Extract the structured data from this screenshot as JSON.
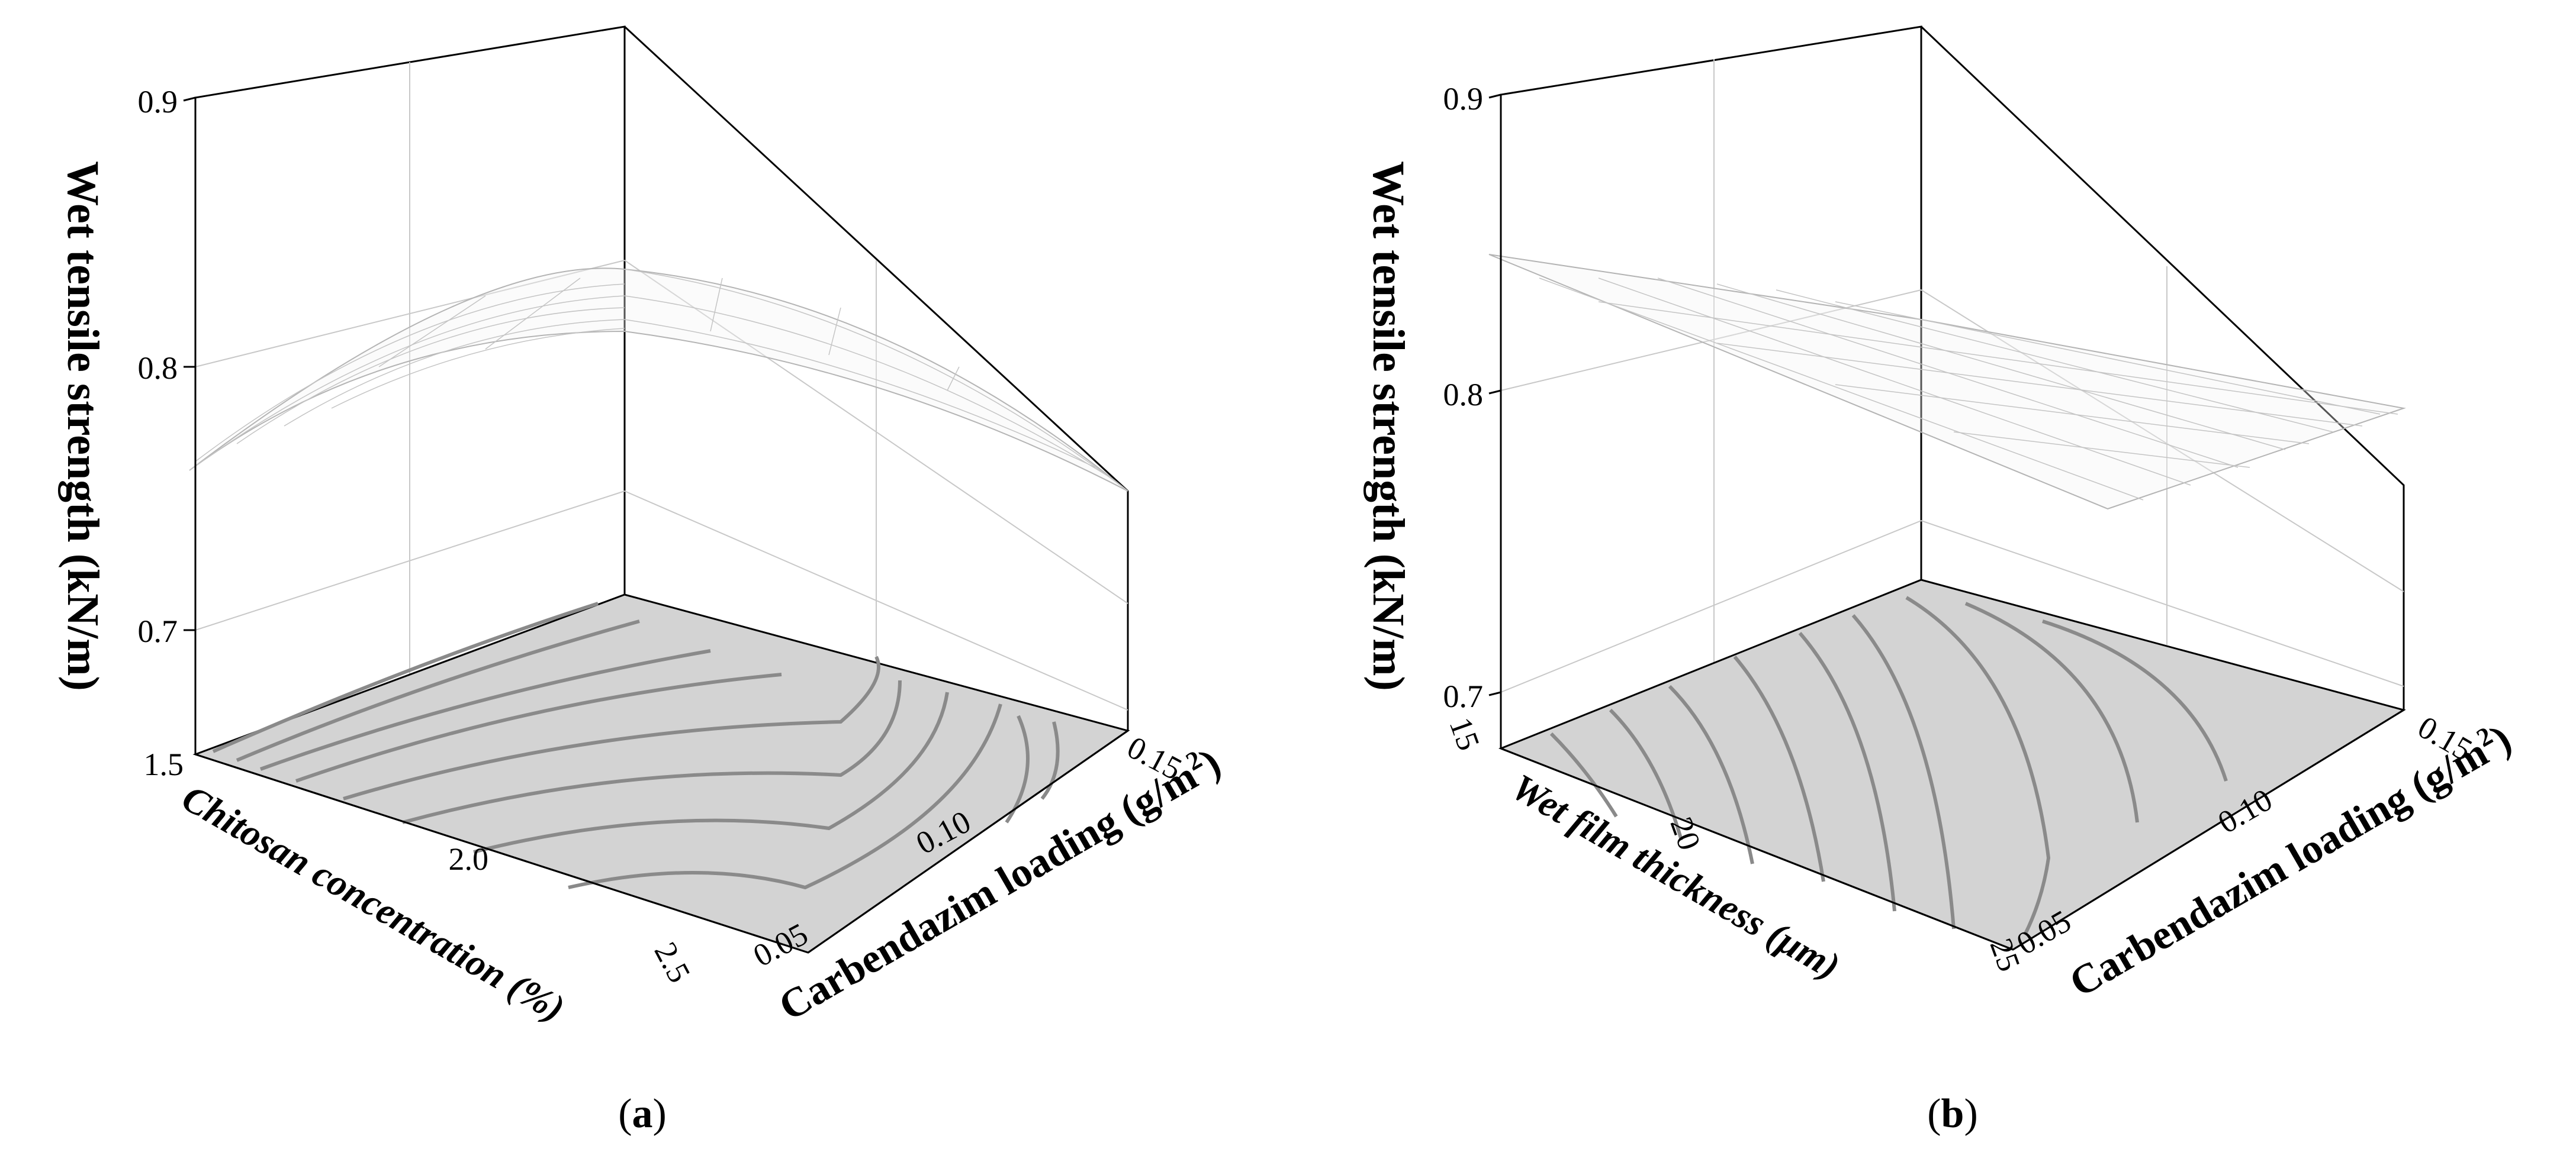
{
  "chart_data": [
    {
      "type": "surface3d",
      "panel_label": "a",
      "zlabel": "Wet tensile strength (kN/m)",
      "xlabel": "Chitosan concentration (%)",
      "ylabel": "Carbendazim loading (g/m²)",
      "ylabel_main": "Carbendazim loading (g/m",
      "ylabel_sup": "2",
      "ylabel_end": ")",
      "z_ticks": [
        "0.7",
        "0.8",
        "0.9"
      ],
      "x_ticks": [
        "1.5",
        "2.0",
        "2.5"
      ],
      "y_ticks": [
        "0.05",
        "0.10",
        "0.15"
      ],
      "x_range": [
        1.5,
        2.5
      ],
      "y_range": [
        0.05,
        0.15
      ],
      "z_range": [
        0.66,
        0.9
      ],
      "surface_corners": {
        "x1.5_y0.05": 0.757,
        "x2.5_y0.05": 0.735,
        "x1.5_y0.15": 0.8,
        "x2.5_y0.15": 0.77,
        "peak_z": 0.815
      },
      "contours": true,
      "grid": true
    },
    {
      "type": "surface3d",
      "panel_label": "b",
      "zlabel": "Wet tensile strength (kN/m)",
      "xlabel": "Wet film thickness (μm)",
      "ylabel": "Carbendazim loading (g/m²)",
      "ylabel_main": "Carbendazim loading (g/m",
      "ylabel_sup": "2",
      "ylabel_end": ")",
      "z_ticks": [
        "0.7",
        "0.8",
        "0.9"
      ],
      "x_ticks": [
        "15",
        "20",
        "25"
      ],
      "y_ticks": [
        "0.05",
        "0.10",
        "0.15"
      ],
      "x_range": [
        15,
        25
      ],
      "y_range": [
        0.05,
        0.15
      ],
      "z_range": [
        0.66,
        0.9
      ],
      "surface_corners": {
        "x15_y0.05": 0.85,
        "x25_y0.05": 0.78,
        "x15_y0.15": 0.83,
        "x25_y0.15": 0.805
      },
      "contours": true,
      "grid": true
    }
  ]
}
